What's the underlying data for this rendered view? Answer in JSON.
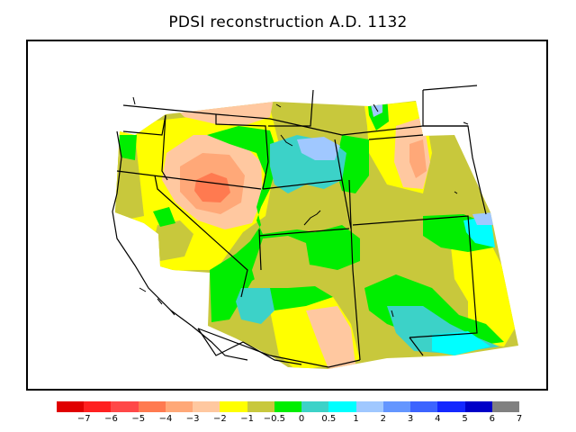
{
  "title": "PDSI reconstruction A.D. 1132",
  "palette": {
    "c1": "#e00000",
    "c2": "#ff2020",
    "c3": "#ff4848",
    "c4": "#ff7a50",
    "c5": "#ffa878",
    "c6": "#ffc8a0",
    "c7": "#ffff00",
    "c8": "#c8c83c",
    "c9": "#00ee00",
    "c10": "#3cd2c8",
    "c11": "#00ffff",
    "c12": "#a0c8ff",
    "c13": "#6496ff",
    "c14": "#3c64ff",
    "c15": "#1428ff",
    "c16": "#0000c8",
    "c17": "#808080"
  },
  "colorbar": {
    "colors": [
      "#e00000",
      "#ff2020",
      "#ff4848",
      "#ff7a50",
      "#ffa878",
      "#ffc8a0",
      "#ffff00",
      "#c8c83c",
      "#00ee00",
      "#3cd2c8",
      "#00ffff",
      "#a0c8ff",
      "#6496ff",
      "#3c64ff",
      "#1428ff",
      "#0000c8",
      "#808080"
    ],
    "labels": [
      "−7",
      "−6",
      "−5",
      "−4",
      "−3",
      "−2",
      "−1",
      "−0.5",
      "0",
      "0.5",
      "1",
      "2",
      "3",
      "4",
      "5",
      "6",
      "7"
    ]
  }
}
